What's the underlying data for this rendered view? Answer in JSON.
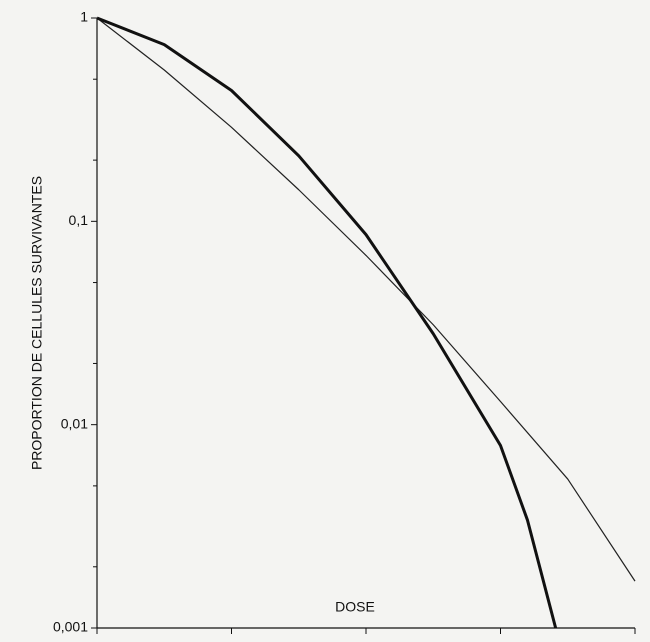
{
  "chart_data": {
    "type": "line",
    "x_label": "DOSE",
    "y_label": "PROPORTION DE CELLULES SURVIVANTES",
    "log_y": true,
    "xlim": [
      0,
      4
    ],
    "xticks": [
      0,
      1,
      2,
      3,
      4
    ],
    "ylim": [
      0.001,
      1
    ],
    "yticks": [
      1,
      {
        "value": 0.1,
        "label": "0,1"
      },
      {
        "value": 0.01,
        "label": "0,01"
      },
      {
        "value": 0.001,
        "label": "0,001"
      }
    ],
    "minor_yticks": [
      0.5,
      0.2,
      0.05,
      0.02,
      0.005,
      0.002
    ],
    "series": [
      {
        "color": "#222222",
        "width": 1.2,
        "x": [
          0,
          0.5,
          1,
          1.5,
          2,
          2.5,
          3,
          3.5,
          4
        ],
        "values": [
          1,
          0.555,
          0.29,
          0.143,
          0.068,
          0.031,
          0.013,
          0.0054,
          0.0017
        ]
      },
      {
        "color": "#111111",
        "width": 3,
        "x": [
          0,
          0.5,
          1,
          1.5,
          2,
          2.5,
          3,
          3.2,
          3.41
        ],
        "values": [
          1,
          0.74,
          0.44,
          0.21,
          0.086,
          0.028,
          0.0079,
          0.0034,
          0.001
        ]
      }
    ]
  }
}
